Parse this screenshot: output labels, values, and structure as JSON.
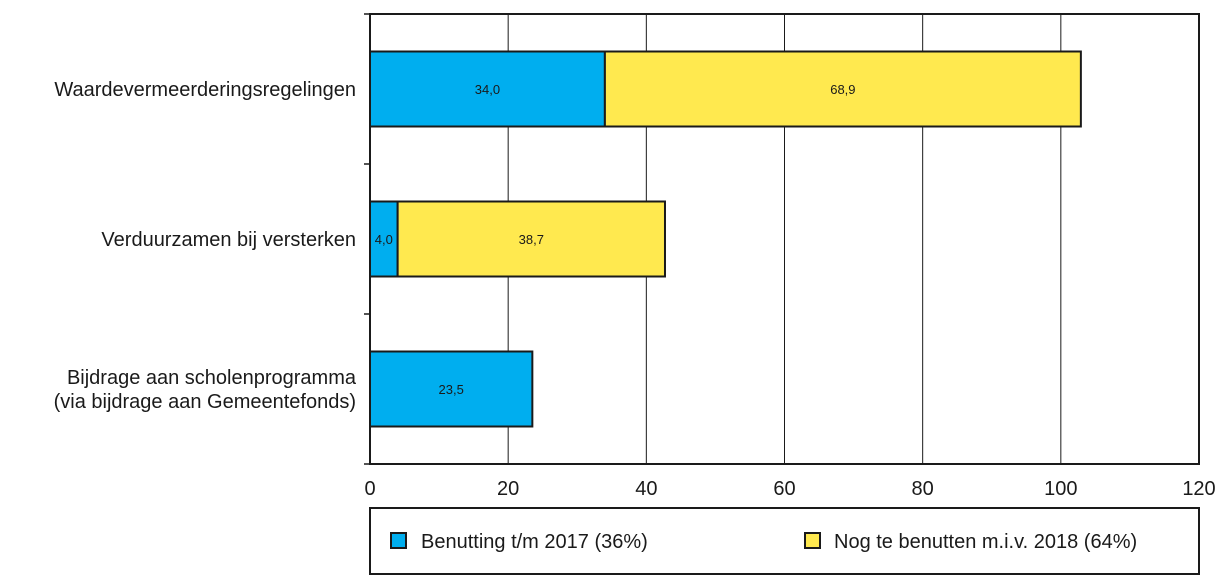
{
  "chart_data": {
    "type": "bar",
    "orientation": "horizontal",
    "stacked": true,
    "categories": [
      [
        "Waardevermeerderingsregelingen"
      ],
      [
        "Verduurzamen bij versterken"
      ],
      [
        "Bijdrage aan scholenprogramma",
        "(via bijdrage aan Gemeentefonds)"
      ]
    ],
    "series": [
      {
        "name": "Benutting t/m 2017 (36%)",
        "color": "#00AEEF",
        "values": [
          34.0,
          4.0,
          23.5
        ],
        "labels": [
          "34,0",
          "4,0",
          "23,5"
        ]
      },
      {
        "name": "Nog te benutten m.i.v. 2018 (64%)",
        "color": "#FFE94F",
        "values": [
          68.9,
          38.7,
          null
        ],
        "labels": [
          "68,9",
          "38,7",
          ""
        ]
      }
    ],
    "xlim": [
      0,
      120
    ],
    "xticks": [
      0,
      20,
      40,
      60,
      80,
      100,
      120
    ],
    "xtick_labels": [
      "0",
      "20",
      "40",
      "60",
      "80",
      "100",
      "120"
    ],
    "grid": "vertical",
    "legend": "bottom",
    "title": "",
    "xlabel": "",
    "ylabel": ""
  }
}
